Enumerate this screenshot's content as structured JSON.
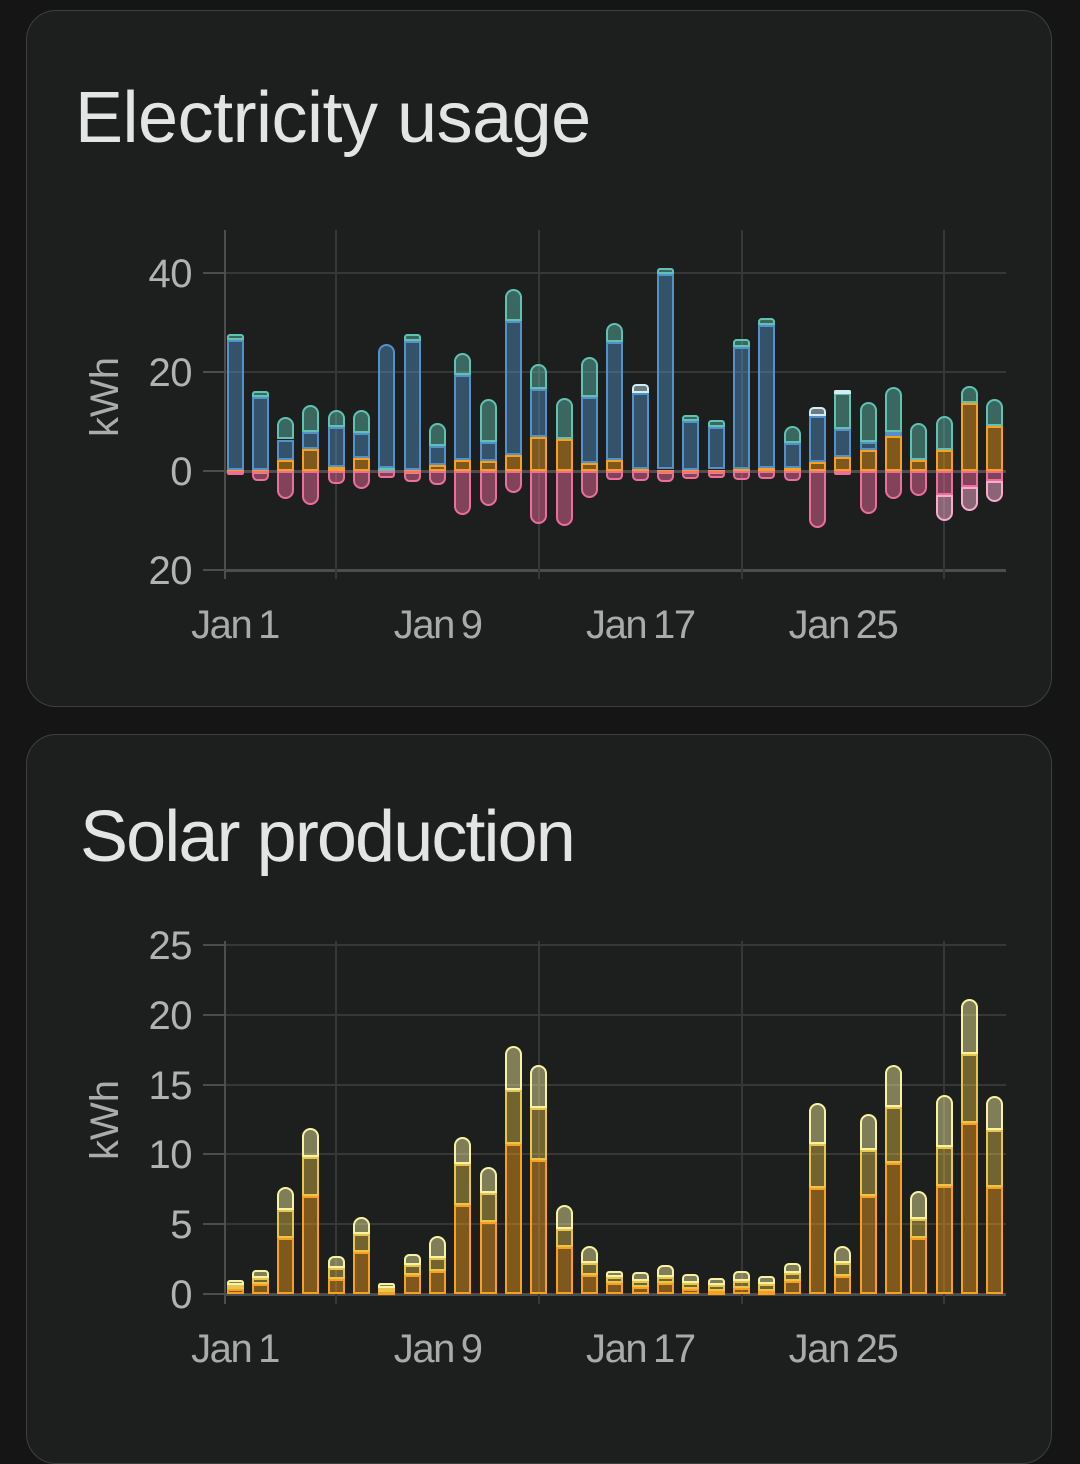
{
  "cards": [
    {
      "title": "Electricity usage"
    },
    {
      "title": "Solar production"
    }
  ],
  "chart_data": [
    {
      "type": "bar",
      "stacked": true,
      "title": "Electricity usage",
      "ylabel": "kWh",
      "xlabel": "",
      "ylim": [
        -20,
        48.6
      ],
      "grid": true,
      "x": [
        "Jan 1",
        "Jan 2",
        "Jan 3",
        "Jan 4",
        "Jan 5",
        "Jan 6",
        "Jan 7",
        "Jan 8",
        "Jan 9",
        "Jan 10",
        "Jan 11",
        "Jan 12",
        "Jan 13",
        "Jan 14",
        "Jan 15",
        "Jan 16",
        "Jan 17",
        "Jan 18",
        "Jan 19",
        "Jan 20",
        "Jan 21",
        "Jan 22",
        "Jan 23",
        "Jan 24",
        "Jan 25",
        "Jan 26",
        "Jan 27",
        "Jan 28",
        "Jan 29",
        "Jan 30",
        "Jan 31"
      ],
      "x_tick_labels": [
        {
          "day": 1,
          "label": "Jan 1"
        },
        {
          "day": 9,
          "label": "Jan 9"
        },
        {
          "day": 17,
          "label": "Jan 17"
        },
        {
          "day": 25,
          "label": "Jan 25"
        }
      ],
      "x_gridline_days": [
        5,
        13,
        21,
        29
      ],
      "y_ticks": [
        {
          "v": 40,
          "label": "40"
        },
        {
          "v": 20,
          "label": "20"
        },
        {
          "v": 0,
          "label": "0"
        },
        {
          "v": -20,
          "label": "20"
        }
      ],
      "series": [
        {
          "name": "orange",
          "color": "#f9a01f",
          "fill_alpha": 0.45,
          "values": [
            0.25,
            0.3,
            2.15,
            4.4,
            0.9,
            2.65,
            0,
            0.3,
            1.2,
            2.2,
            2.0,
            3.2,
            6.8,
            6.4,
            1.6,
            2.2,
            0.4,
            0.3,
            0.3,
            0.3,
            0.5,
            0.6,
            0.6,
            1.8,
            2.76,
            4.2,
            6.96,
            2.2,
            4.3,
            13.8,
            9.0
          ]
        },
        {
          "name": "teal-low",
          "color": "#60c2b2",
          "fill_alpha": 0.45,
          "values": [
            0,
            0,
            0,
            0,
            0,
            0,
            0.65,
            0,
            0,
            0,
            0,
            0,
            0,
            0,
            0,
            0,
            0,
            0,
            0,
            0,
            0,
            0,
            0,
            0,
            0,
            0,
            0,
            0,
            0,
            0,
            0
          ]
        },
        {
          "name": "blue",
          "color": "#5392c8",
          "fill_alpha": 0.45,
          "values": [
            26.2,
            14.6,
            4.2,
            3.5,
            8.05,
            5.0,
            24.9,
            26.0,
            3.8,
            17.1,
            3.8,
            27.1,
            9.8,
            0,
            13.4,
            23.9,
            15.4,
            39.5,
            9.7,
            8.6,
            24.6,
            28.8,
            5.1,
            9.3,
            5.8,
            1.65,
            1.0,
            0,
            0,
            0,
            0
          ]
        },
        {
          "name": "teal",
          "color": "#60c2b2",
          "fill_alpha": 0.45,
          "values": [
            1.15,
            1.2,
            4.5,
            5.5,
            3.4,
            4.65,
            0,
            1.3,
            4.6,
            4.4,
            8.8,
            6.3,
            4.9,
            8.4,
            7.9,
            3.7,
            0,
            1.2,
            1.3,
            1.3,
            1.5,
            1.5,
            3.4,
            0,
            7.1,
            8.05,
            8.9,
            7.55,
            6.7,
            3.3,
            5.6
          ]
        },
        {
          "name": "light-cyan",
          "color": "#cfeef6",
          "fill_alpha": 0.45,
          "values": [
            0,
            0,
            0,
            0,
            0,
            0,
            0,
            0,
            0,
            0,
            0,
            0,
            0,
            0,
            0,
            0,
            1.75,
            0,
            0,
            0,
            0,
            0,
            0,
            1.9,
            0.65,
            0,
            0,
            0,
            0,
            0,
            0
          ]
        }
      ],
      "negative_series": [
        {
          "name": "pink",
          "color": "#ee6d9b",
          "fill_alpha": 0.48,
          "values": [
            0.8,
            2.1,
            5.7,
            6.9,
            2.6,
            3.6,
            1.35,
            2.2,
            2.8,
            8.8,
            7.0,
            4.4,
            10.6,
            11.0,
            5.4,
            1.8,
            2.0,
            2.3,
            1.7,
            1.45,
            1.9,
            1.7,
            2.1,
            11.4,
            0.8,
            8.65,
            5.66,
            5.1,
            4.9,
            3.3,
            1.95
          ]
        },
        {
          "name": "light-pink",
          "color": "#f8abcb",
          "fill_alpha": 0.5,
          "values": [
            0,
            0,
            0,
            0,
            0,
            0,
            0,
            0,
            0,
            0,
            0,
            0,
            0,
            0,
            0,
            0,
            0,
            0,
            0,
            0,
            0,
            0,
            0,
            0,
            0,
            0,
            0,
            0,
            5.1,
            4.7,
            4.3
          ]
        }
      ]
    },
    {
      "type": "bar",
      "stacked": true,
      "title": "Solar production",
      "ylabel": "kWh",
      "xlabel": "",
      "ylim": [
        0,
        25.3
      ],
      "grid": true,
      "x": [
        "Jan 1",
        "Jan 2",
        "Jan 3",
        "Jan 4",
        "Jan 5",
        "Jan 6",
        "Jan 7",
        "Jan 8",
        "Jan 9",
        "Jan 10",
        "Jan 11",
        "Jan 12",
        "Jan 13",
        "Jan 14",
        "Jan 15",
        "Jan 16",
        "Jan 17",
        "Jan 18",
        "Jan 19",
        "Jan 20",
        "Jan 21",
        "Jan 22",
        "Jan 23",
        "Jan 24",
        "Jan 25",
        "Jan 26",
        "Jan 27",
        "Jan 28",
        "Jan 29",
        "Jan 30",
        "Jan 31"
      ],
      "x_tick_labels": [
        {
          "day": 1,
          "label": "Jan 1"
        },
        {
          "day": 9,
          "label": "Jan 9"
        },
        {
          "day": 17,
          "label": "Jan 17"
        },
        {
          "day": 25,
          "label": "Jan 25"
        }
      ],
      "x_gridline_days": [
        5,
        13,
        21,
        29
      ],
      "y_ticks": [
        {
          "v": 25,
          "label": "25"
        },
        {
          "v": 20,
          "label": "20"
        },
        {
          "v": 15,
          "label": "15"
        },
        {
          "v": 10,
          "label": "10"
        },
        {
          "v": 5,
          "label": "5"
        },
        {
          "v": 0,
          "label": "0"
        }
      ],
      "series": [
        {
          "name": "orange",
          "color": "#f9a01f",
          "fill_alpha": 0.45,
          "values": [
            0.35,
            0.7,
            4.0,
            7.03,
            1.1,
            3.0,
            0.2,
            1.33,
            1.68,
            6.36,
            5.17,
            10.75,
            9.63,
            3.38,
            1.37,
            0.78,
            0.5,
            0.78,
            0.39,
            0.25,
            0.44,
            0.21,
            0.92,
            7.59,
            1.32,
            7.02,
            9.39,
            4.0,
            7.76,
            12.24,
            7.68
          ]
        },
        {
          "name": "khaki",
          "color": "#e9c54b",
          "fill_alpha": 0.42,
          "values": [
            0.28,
            0.45,
            2.05,
            2.79,
            0.78,
            1.28,
            0.26,
            0.73,
            0.87,
            2.97,
            2.08,
            3.86,
            3.72,
            1.26,
            0.82,
            0.44,
            0.42,
            0.46,
            0.39,
            0.37,
            0.48,
            0.49,
            0.56,
            3.18,
            0.89,
            3.26,
            3.99,
            1.39,
            2.77,
            4.96,
            4.07
          ]
        },
        {
          "name": "light-yellow",
          "color": "#f8f3a2",
          "fill_alpha": 0.45,
          "values": [
            0.4,
            0.57,
            1.6,
            2.05,
            0.87,
            1.2,
            0.35,
            0.8,
            1.58,
            1.94,
            1.86,
            3.13,
            3.05,
            1.72,
            1.27,
            0.45,
            0.64,
            0.87,
            0.62,
            0.55,
            0.71,
            0.56,
            0.71,
            2.93,
            1.23,
            2.61,
            3.02,
            1.96,
            3.75,
            3.9,
            2.45
          ]
        }
      ],
      "negative_series": []
    }
  ]
}
